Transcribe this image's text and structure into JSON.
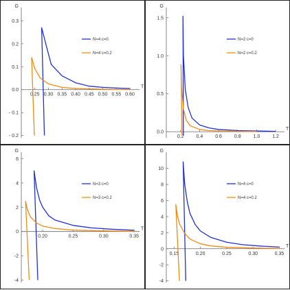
{
  "colors": {
    "blue": "#1f2fd6",
    "orange": "#f08a10"
  },
  "chart_data": [
    {
      "type": "line",
      "xlabel": "T",
      "ylabel": "G",
      "xlim": [
        0.2,
        0.62
      ],
      "ylim": [
        -0.21,
        0.34
      ],
      "xticks": [
        0.25,
        0.3,
        0.35,
        0.4,
        0.45,
        0.5,
        0.55,
        0.6
      ],
      "xtick_labels": [
        "0.25",
        "0.30",
        "0.35",
        "0.40",
        "0.45",
        "0.50",
        "0.55",
        "0.60"
      ],
      "yticks": [
        -0.2,
        -0.1,
        0.0,
        0.1,
        0.2,
        0.3
      ],
      "ytick_labels": [
        "- 0.2",
        "- 0.1",
        "0.0",
        "0.1",
        "0.2",
        "0.3"
      ],
      "legend": "top-right",
      "series": [
        {
          "name": "N=4  c=0",
          "color": "blue",
          "x": [
            0.285,
            0.275,
            0.29,
            0.31,
            0.35,
            0.4,
            0.45,
            0.5,
            0.55,
            0.6
          ],
          "y": [
            -0.2,
            0.27,
            0.2,
            0.11,
            0.06,
            0.03,
            0.015,
            0.01,
            0.007,
            0.005
          ]
        },
        {
          "name": "N=4  c=0.2",
          "color": "orange",
          "x": [
            0.248,
            0.238,
            0.25,
            0.27,
            0.3,
            0.35,
            0.4,
            0.45,
            0.5,
            0.55,
            0.6
          ],
          "y": [
            -0.2,
            0.14,
            0.09,
            0.05,
            0.025,
            0.01,
            0.005,
            0.003,
            0.002,
            0.001,
            0.001
          ]
        }
      ]
    },
    {
      "type": "line",
      "xlabel": "T",
      "ylabel": "G",
      "xlim": [
        0.05,
        1.25
      ],
      "ylim": [
        -0.08,
        1.58
      ],
      "xticks": [
        0.2,
        0.4,
        0.6,
        0.8,
        1.0,
        1.2
      ],
      "xtick_labels": [
        "0.2",
        "0.4",
        "0.6",
        "0.8",
        "1.0",
        "1.2"
      ],
      "yticks": [
        0.0,
        0.5,
        1.0,
        1.5
      ],
      "ytick_labels": [
        "0.0",
        "0.5",
        "1.0",
        "1.5"
      ],
      "legend": "top-right",
      "series": [
        {
          "name": "N=2  c=0",
          "color": "blue",
          "x": [
            0.23,
            0.225,
            0.23,
            0.25,
            0.28,
            0.32,
            0.4,
            0.5,
            0.6,
            0.8,
            1.0,
            1.2
          ],
          "y": [
            -0.05,
            1.52,
            1.0,
            0.55,
            0.32,
            0.18,
            0.09,
            0.05,
            0.03,
            0.015,
            0.01,
            0.005
          ]
        },
        {
          "name": "N=2  c=0.2",
          "color": "orange",
          "x": [
            0.215,
            0.205,
            0.21,
            0.23,
            0.26,
            0.3,
            0.4,
            0.5,
            0.6,
            0.8,
            1.0
          ],
          "y": [
            -0.05,
            0.88,
            0.6,
            0.3,
            0.15,
            0.08,
            0.03,
            0.015,
            0.01,
            0.005,
            0.003
          ]
        }
      ]
    },
    {
      "type": "line",
      "xlabel": "T",
      "ylabel": "G",
      "xlim": [
        0.165,
        0.352
      ],
      "ylim": [
        -4.2,
        6.2
      ],
      "xticks": [
        0.2,
        0.25,
        0.3,
        0.35
      ],
      "xtick_labels": [
        "0.20",
        "0.25",
        "0.30",
        "0.35"
      ],
      "yticks": [
        -4,
        -2,
        0,
        2,
        4,
        6
      ],
      "ytick_labels": [
        "-4",
        "-2",
        "0",
        "2",
        "4",
        "6"
      ],
      "legend": "top-right",
      "series": [
        {
          "name": "N=3  c=0",
          "color": "blue",
          "x": [
            0.192,
            0.186,
            0.19,
            0.195,
            0.2,
            0.21,
            0.22,
            0.25,
            0.28,
            0.31,
            0.35
          ],
          "y": [
            -4.0,
            5.0,
            3.6,
            2.6,
            2.0,
            1.3,
            0.95,
            0.5,
            0.3,
            0.2,
            0.1
          ]
        },
        {
          "name": "N=3  c=0.2",
          "color": "orange",
          "x": [
            0.178,
            0.172,
            0.175,
            0.18,
            0.19,
            0.2,
            0.22,
            0.25,
            0.3,
            0.35
          ],
          "y": [
            -4.0,
            2.5,
            1.8,
            1.2,
            0.7,
            0.45,
            0.25,
            0.12,
            0.05,
            0.02
          ]
        }
      ]
    },
    {
      "type": "line",
      "xlabel": "T",
      "ylabel": "G",
      "xlim": [
        0.135,
        0.352
      ],
      "ylim": [
        -4.2,
        11.5
      ],
      "xticks": [
        0.15,
        0.2,
        0.25,
        0.3,
        0.35
      ],
      "xtick_labels": [
        "0.15",
        "0.20",
        "0.25",
        "0.30",
        "0.35"
      ],
      "yticks": [
        -4,
        -2,
        0,
        2,
        4,
        6,
        8,
        10
      ],
      "ytick_labels": [
        "-4",
        "-2",
        "0",
        "2",
        "4",
        "6",
        "8",
        "10"
      ],
      "legend": "top-right",
      "series": [
        {
          "name": "N=4  c=0",
          "color": "blue",
          "x": [
            0.172,
            0.167,
            0.17,
            0.175,
            0.18,
            0.19,
            0.2,
            0.22,
            0.25,
            0.28,
            0.31,
            0.35
          ],
          "y": [
            -4.0,
            10.8,
            8.0,
            5.8,
            4.4,
            3.0,
            2.2,
            1.4,
            0.8,
            0.5,
            0.35,
            0.2
          ]
        },
        {
          "name": "N=4  c=0.2",
          "color": "orange",
          "x": [
            0.16,
            0.153,
            0.156,
            0.16,
            0.17,
            0.18,
            0.2,
            0.22,
            0.25,
            0.3,
            0.35
          ],
          "y": [
            -4.0,
            5.5,
            4.2,
            3.1,
            1.9,
            1.2,
            0.6,
            0.35,
            0.18,
            0.08,
            0.03
          ]
        }
      ]
    }
  ]
}
